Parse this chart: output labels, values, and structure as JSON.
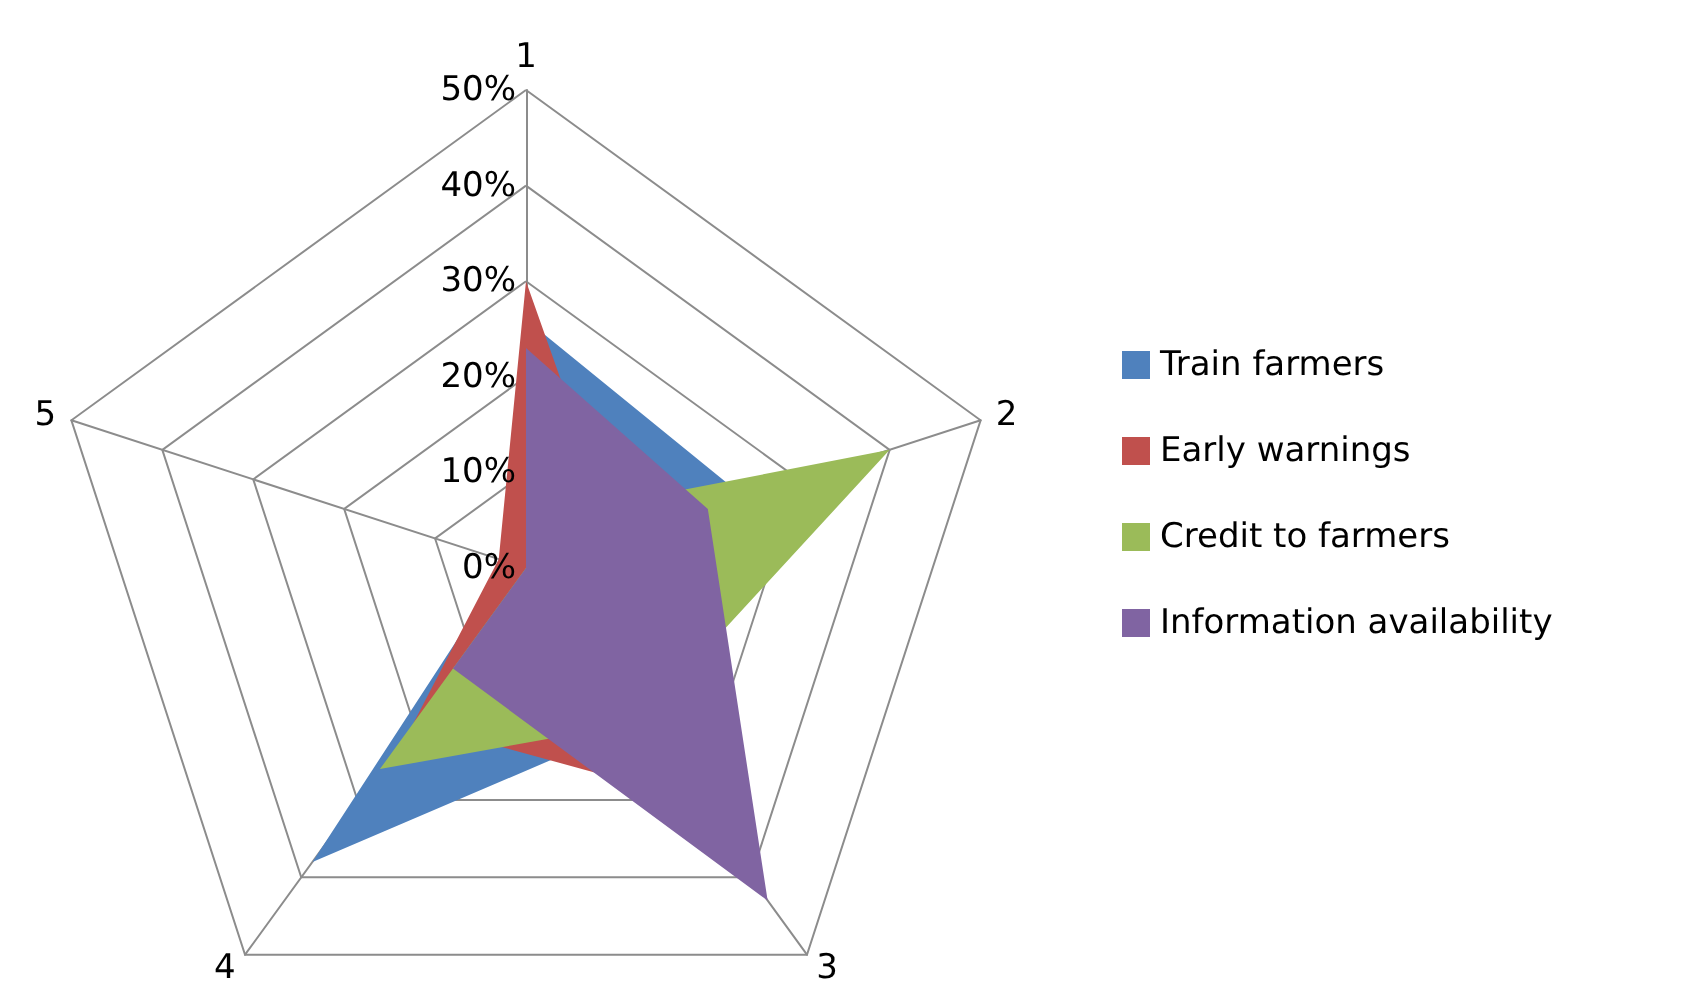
{
  "chart_data": {
    "type": "radar",
    "categories": [
      "1",
      "2",
      "3",
      "4",
      "5"
    ],
    "series": [
      {
        "name": "Train farmers",
        "color": "#4f81bd",
        "values": [
          26,
          24,
          20,
          38,
          2
        ]
      },
      {
        "name": "Early warnings",
        "color": "#c0504d",
        "values": [
          30,
          10,
          30,
          20,
          3
        ]
      },
      {
        "name": "Credit to farmers",
        "color": "#9bbb59",
        "values": [
          5,
          40,
          20,
          26,
          0
        ]
      },
      {
        "name": "Information availability",
        "color": "#8064a2",
        "values": [
          23,
          20,
          43,
          13,
          0
        ]
      }
    ],
    "ylim": [
      0,
      50
    ],
    "yticks": [
      {
        "value": 0,
        "label": "0%"
      },
      {
        "value": 10,
        "label": "10%"
      },
      {
        "value": 20,
        "label": "20%"
      },
      {
        "value": 30,
        "label": "30%"
      },
      {
        "value": 40,
        "label": "40%"
      },
      {
        "value": 50,
        "label": "50%"
      }
    ],
    "grid": true,
    "legend": "right"
  }
}
